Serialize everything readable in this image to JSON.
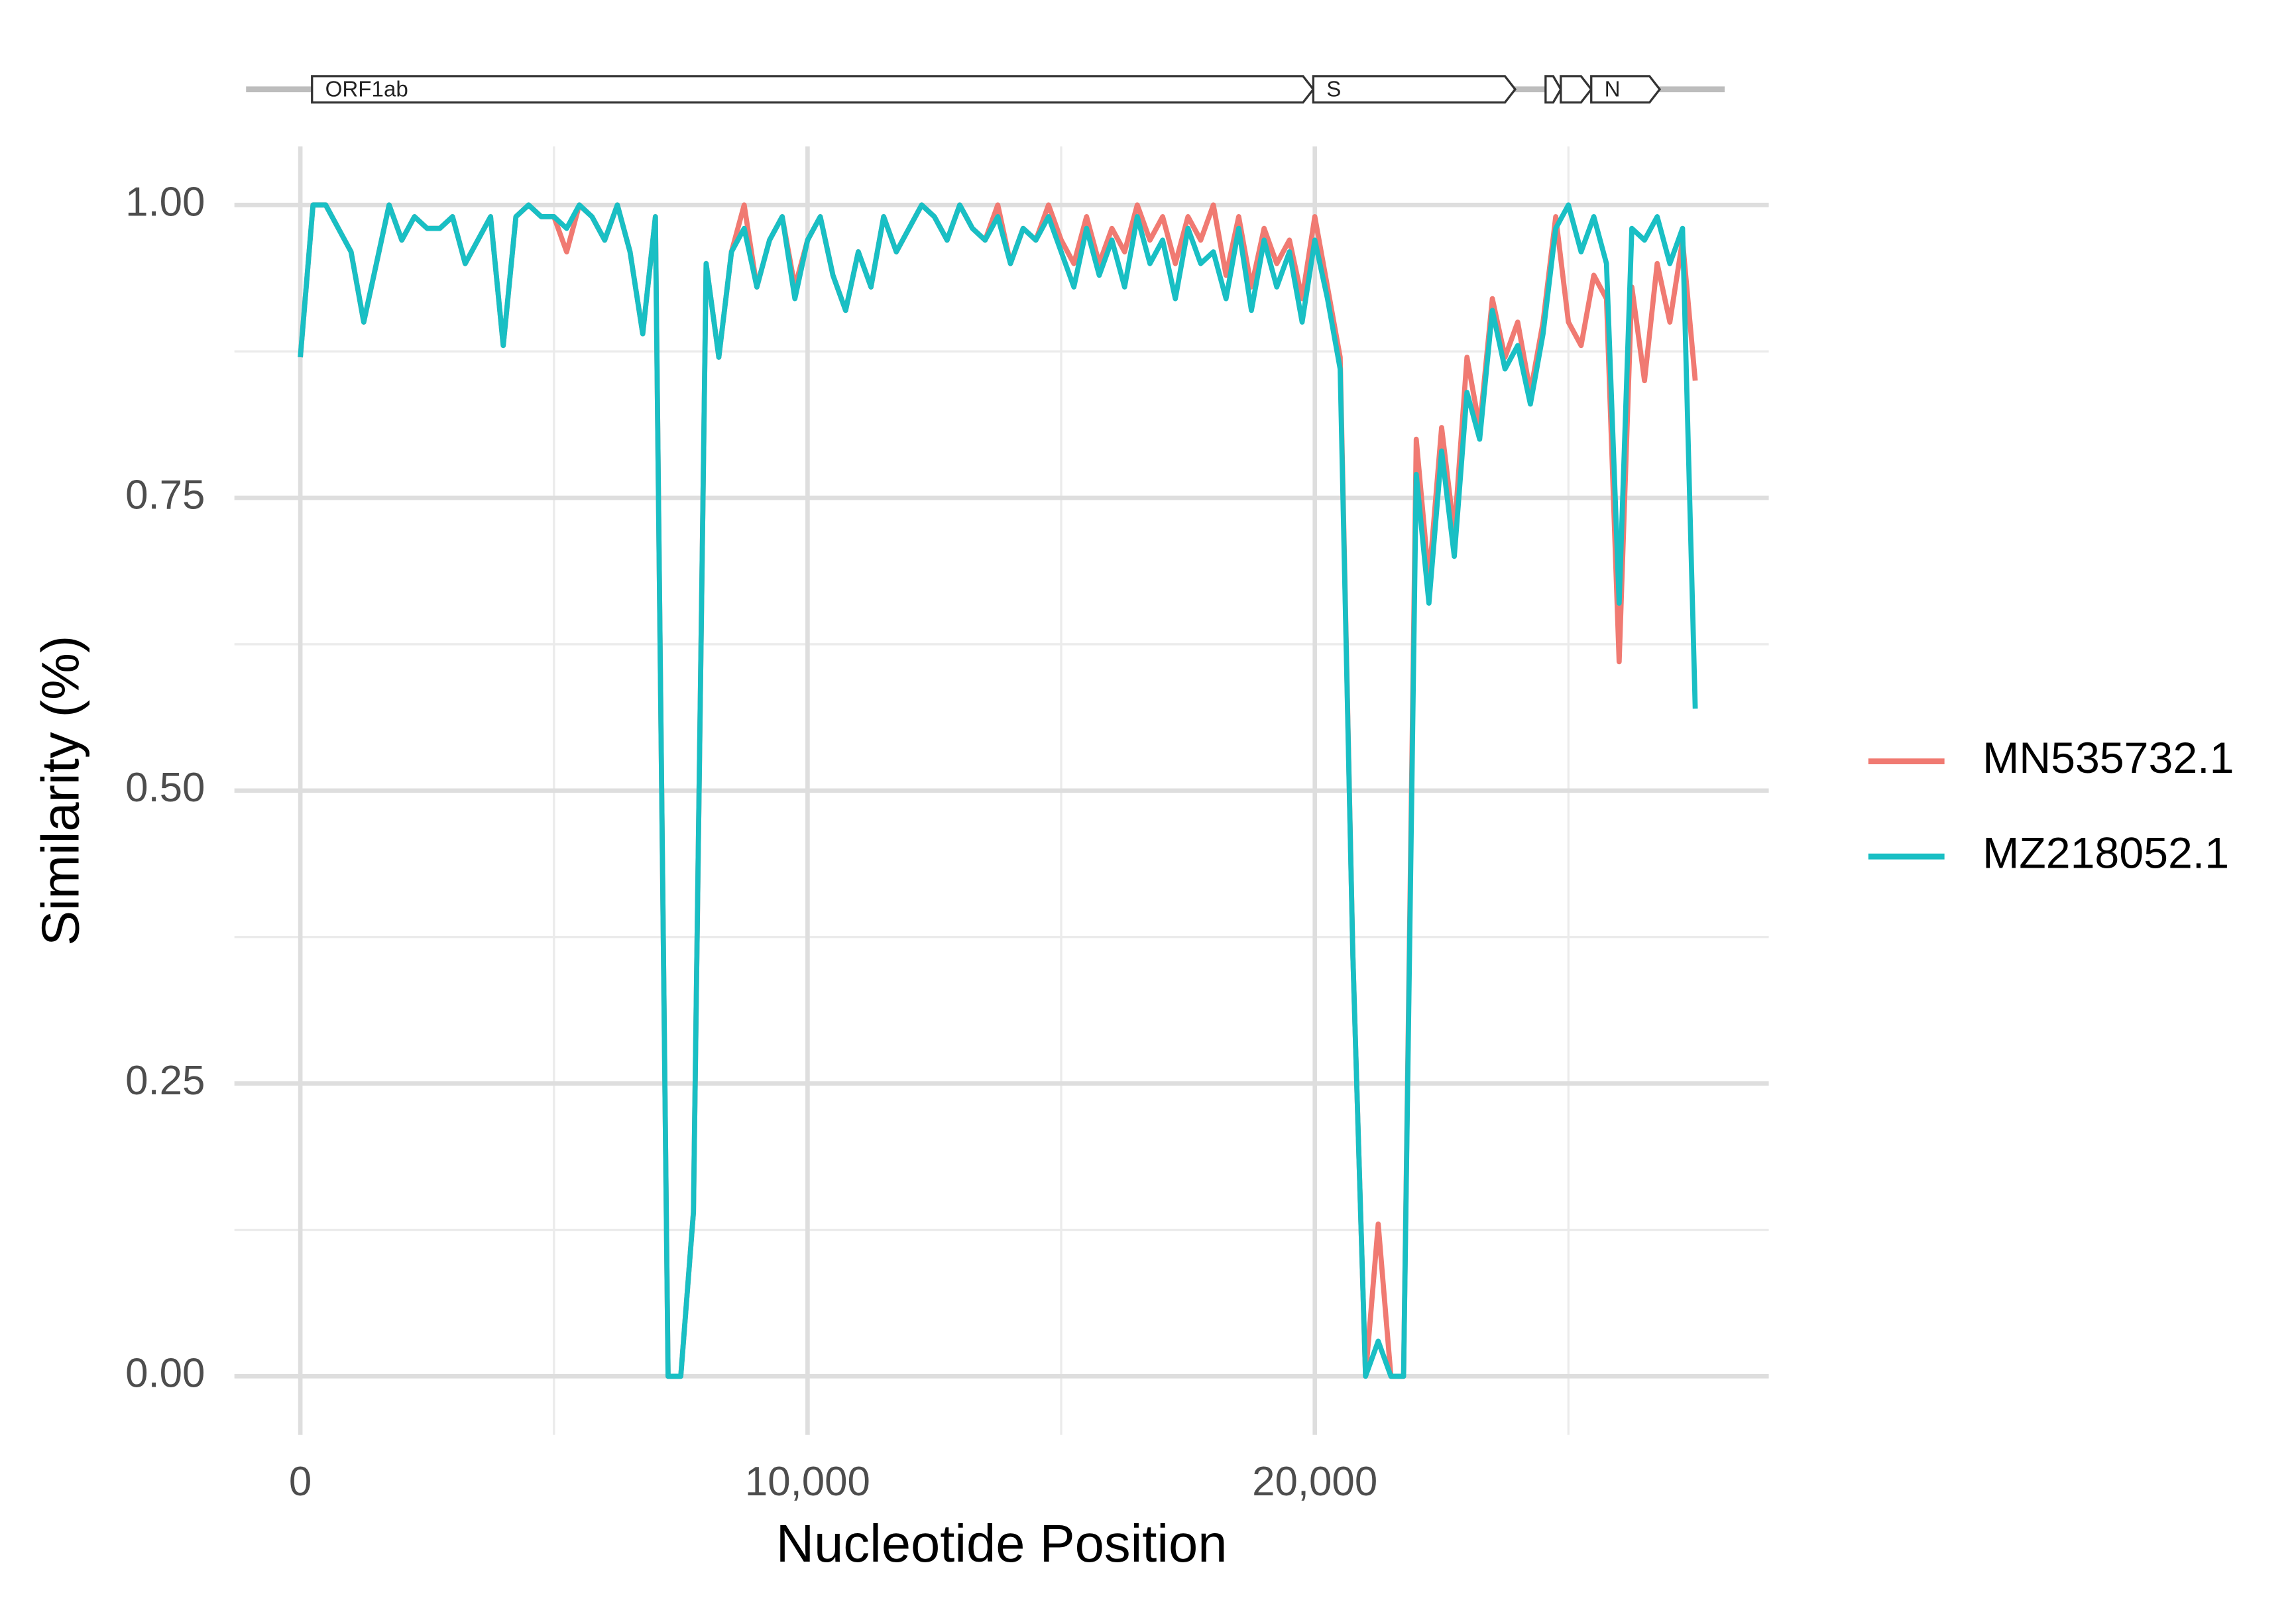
{
  "chart_data": {
    "type": "line",
    "xlabel": "Nucleotide Position",
    "ylabel": "Similarity (%)",
    "xlim": [
      -1300,
      28950
    ],
    "ylim": [
      -0.05,
      1.05
    ],
    "xticks": [
      0,
      {
        "value": 10000,
        "label": "10,000"
      },
      {
        "value": 20000,
        "label": "20,000"
      }
    ],
    "xminor": [
      5000,
      15000,
      25000
    ],
    "yticks": [
      {
        "value": 0,
        "label": "0.00"
      },
      {
        "value": 0.25,
        "label": "0.25"
      },
      {
        "value": 0.5,
        "label": "0.50"
      },
      {
        "value": 0.75,
        "label": "0.75"
      },
      {
        "value": 1,
        "label": "1.00"
      }
    ],
    "yminor": [
      0.125,
      0.375,
      0.625,
      0.875
    ],
    "grid": true,
    "legend": "right",
    "genome": [
      -1070,
      28080
    ],
    "genes": [
      {
        "name": "ORF1ab",
        "start": 230,
        "end": 19970
      },
      {
        "name": "S",
        "start": 19970,
        "end": 23950
      },
      {
        "name": null,
        "start": 24550,
        "end": 24850
      },
      {
        "name": null,
        "start": 24850,
        "end": 25450
      },
      {
        "name": "N",
        "start": 25450,
        "end": 26800
      }
    ],
    "x": [
      0,
      250,
      500,
      750,
      1000,
      1250,
      1500,
      1750,
      2000,
      2250,
      2500,
      2750,
      3000,
      3250,
      3500,
      3750,
      4000,
      4250,
      4500,
      4750,
      5000,
      5250,
      5500,
      5750,
      6000,
      6250,
      6500,
      6750,
      7000,
      7250,
      7500,
      7750,
      8000,
      8250,
      8500,
      8750,
      9000,
      9250,
      9500,
      9750,
      10000,
      10250,
      10500,
      10750,
      11000,
      11250,
      11500,
      11750,
      12000,
      12250,
      12500,
      12750,
      13000,
      13250,
      13500,
      13750,
      14000,
      14250,
      14500,
      14750,
      15000,
      15250,
      15500,
      15750,
      16000,
      16250,
      16500,
      16750,
      17000,
      17250,
      17500,
      17750,
      18000,
      18250,
      18500,
      18750,
      19000,
      19250,
      19500,
      19750,
      20000,
      20250,
      20500,
      20750,
      21000,
      21250,
      21500,
      21750,
      22000,
      22250,
      22500,
      22750,
      23000,
      23250,
      23500,
      23750,
      24000,
      24250,
      24500,
      24750,
      25000,
      25250,
      25500,
      25750,
      26000,
      26250,
      26500,
      26750,
      27000,
      27250,
      27500
    ],
    "series": [
      {
        "name": "MN535732.1",
        "color": "#f07a72",
        "values": [
          0.87,
          1.0,
          1.0,
          0.98,
          0.96,
          0.9,
          0.95,
          1.0,
          0.97,
          0.99,
          0.98,
          0.98,
          0.99,
          0.95,
          0.97,
          0.99,
          0.88,
          0.99,
          1.0,
          0.99,
          0.99,
          0.96,
          1.0,
          0.99,
          0.97,
          1.0,
          0.96,
          0.89,
          0.99,
          0.0,
          0.0,
          0.14,
          0.95,
          0.87,
          0.96,
          1.0,
          0.93,
          0.97,
          0.99,
          0.93,
          0.97,
          0.99,
          0.94,
          0.91,
          0.96,
          0.93,
          0.99,
          0.96,
          0.98,
          1.0,
          0.99,
          0.97,
          1.0,
          0.98,
          0.97,
          1.0,
          0.95,
          0.98,
          0.97,
          1.0,
          0.97,
          0.95,
          0.99,
          0.95,
          0.98,
          0.96,
          1.0,
          0.97,
          0.99,
          0.95,
          0.99,
          0.97,
          1.0,
          0.94,
          0.99,
          0.93,
          0.98,
          0.95,
          0.97,
          0.92,
          0.99,
          0.93,
          0.87,
          0.36,
          0.0,
          0.13,
          0.0,
          0.0,
          0.8,
          0.68,
          0.81,
          0.72,
          0.87,
          0.81,
          0.92,
          0.87,
          0.9,
          0.84,
          0.9,
          0.99,
          0.9,
          0.88,
          0.94,
          0.92,
          0.61,
          0.93,
          0.85,
          0.95,
          0.9,
          0.97,
          0.85
        ]
      },
      {
        "name": "MZ218052.1",
        "color": "#19bfc4",
        "values": [
          0.87,
          1.0,
          1.0,
          0.98,
          0.96,
          0.9,
          0.95,
          1.0,
          0.97,
          0.99,
          0.98,
          0.98,
          0.99,
          0.95,
          0.97,
          0.99,
          0.88,
          0.99,
          1.0,
          0.99,
          0.99,
          0.98,
          1.0,
          0.99,
          0.97,
          1.0,
          0.96,
          0.89,
          0.99,
          0.0,
          0.0,
          0.14,
          0.95,
          0.87,
          0.96,
          0.98,
          0.93,
          0.97,
          0.99,
          0.92,
          0.97,
          0.99,
          0.94,
          0.91,
          0.96,
          0.93,
          0.99,
          0.96,
          0.98,
          1.0,
          0.99,
          0.97,
          1.0,
          0.98,
          0.97,
          0.99,
          0.95,
          0.98,
          0.97,
          0.99,
          0.96,
          0.93,
          0.98,
          0.94,
          0.97,
          0.93,
          0.99,
          0.95,
          0.97,
          0.92,
          0.98,
          0.95,
          0.96,
          0.92,
          0.98,
          0.91,
          0.97,
          0.93,
          0.96,
          0.9,
          0.97,
          0.92,
          0.86,
          0.36,
          0.0,
          0.03,
          0.0,
          0.0,
          0.77,
          0.66,
          0.79,
          0.7,
          0.84,
          0.8,
          0.91,
          0.86,
          0.88,
          0.83,
          0.89,
          0.98,
          1.0,
          0.96,
          0.99,
          0.95,
          0.66,
          0.98,
          0.97,
          0.99,
          0.95,
          0.98,
          0.57
        ]
      }
    ]
  }
}
